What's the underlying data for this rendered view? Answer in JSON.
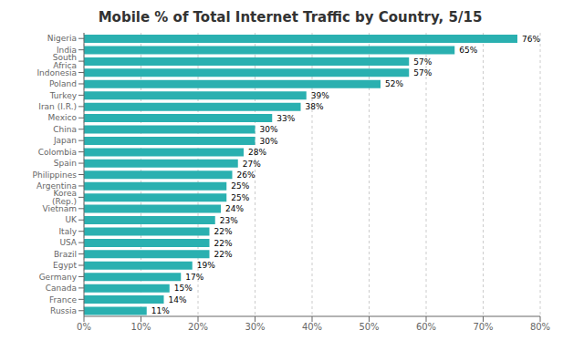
{
  "chart_data": {
    "type": "bar",
    "title": "Mobile % of Total Internet Traffic by Country, 5/15",
    "orientation": "horizontal",
    "categories": [
      "Russia",
      "France",
      "Canada",
      "Germany",
      "Egypt",
      "Brazil",
      "USA",
      "Italy",
      "UK",
      "Vietnam",
      "Korea (Rep.)",
      "Argentina",
      "Philippines",
      "Spain",
      "Colombia",
      "Japan",
      "China",
      "Mexico",
      "Iran (I.R.)",
      "Turkey",
      "Poland",
      "Indonesia",
      "South Africa",
      "India",
      "Nigeria"
    ],
    "values": [
      11,
      14,
      15,
      17,
      19,
      22,
      22,
      22,
      23,
      24,
      25,
      25,
      26,
      27,
      28,
      30,
      30,
      33,
      38,
      39,
      52,
      57,
      57,
      65,
      76
    ],
    "value_labels": [
      "11%",
      "14%",
      "15%",
      "17%",
      "19%",
      "22%",
      "22%",
      "22%",
      "23%",
      "24%",
      "25%",
      "25%",
      "26%",
      "27%",
      "28%",
      "30%",
      "30%",
      "33%",
      "38%",
      "39%",
      "52%",
      "57%",
      "57%",
      "65%",
      "76%"
    ],
    "data_labels": true,
    "color": "#2ab0b0",
    "xlim": [
      0,
      80
    ],
    "xticks": [
      {
        "value": 0,
        "label": "0%"
      },
      {
        "value": 10,
        "label": "10%"
      },
      {
        "value": 20,
        "label": "20%"
      },
      {
        "value": 30,
        "label": "30%"
      },
      {
        "value": 40,
        "label": "40%"
      },
      {
        "value": 50,
        "label": "50%"
      },
      {
        "value": 60,
        "label": "60%"
      },
      {
        "value": 70,
        "label": "70%"
      },
      {
        "value": 80,
        "label": "80%"
      }
    ],
    "grid": true
  }
}
